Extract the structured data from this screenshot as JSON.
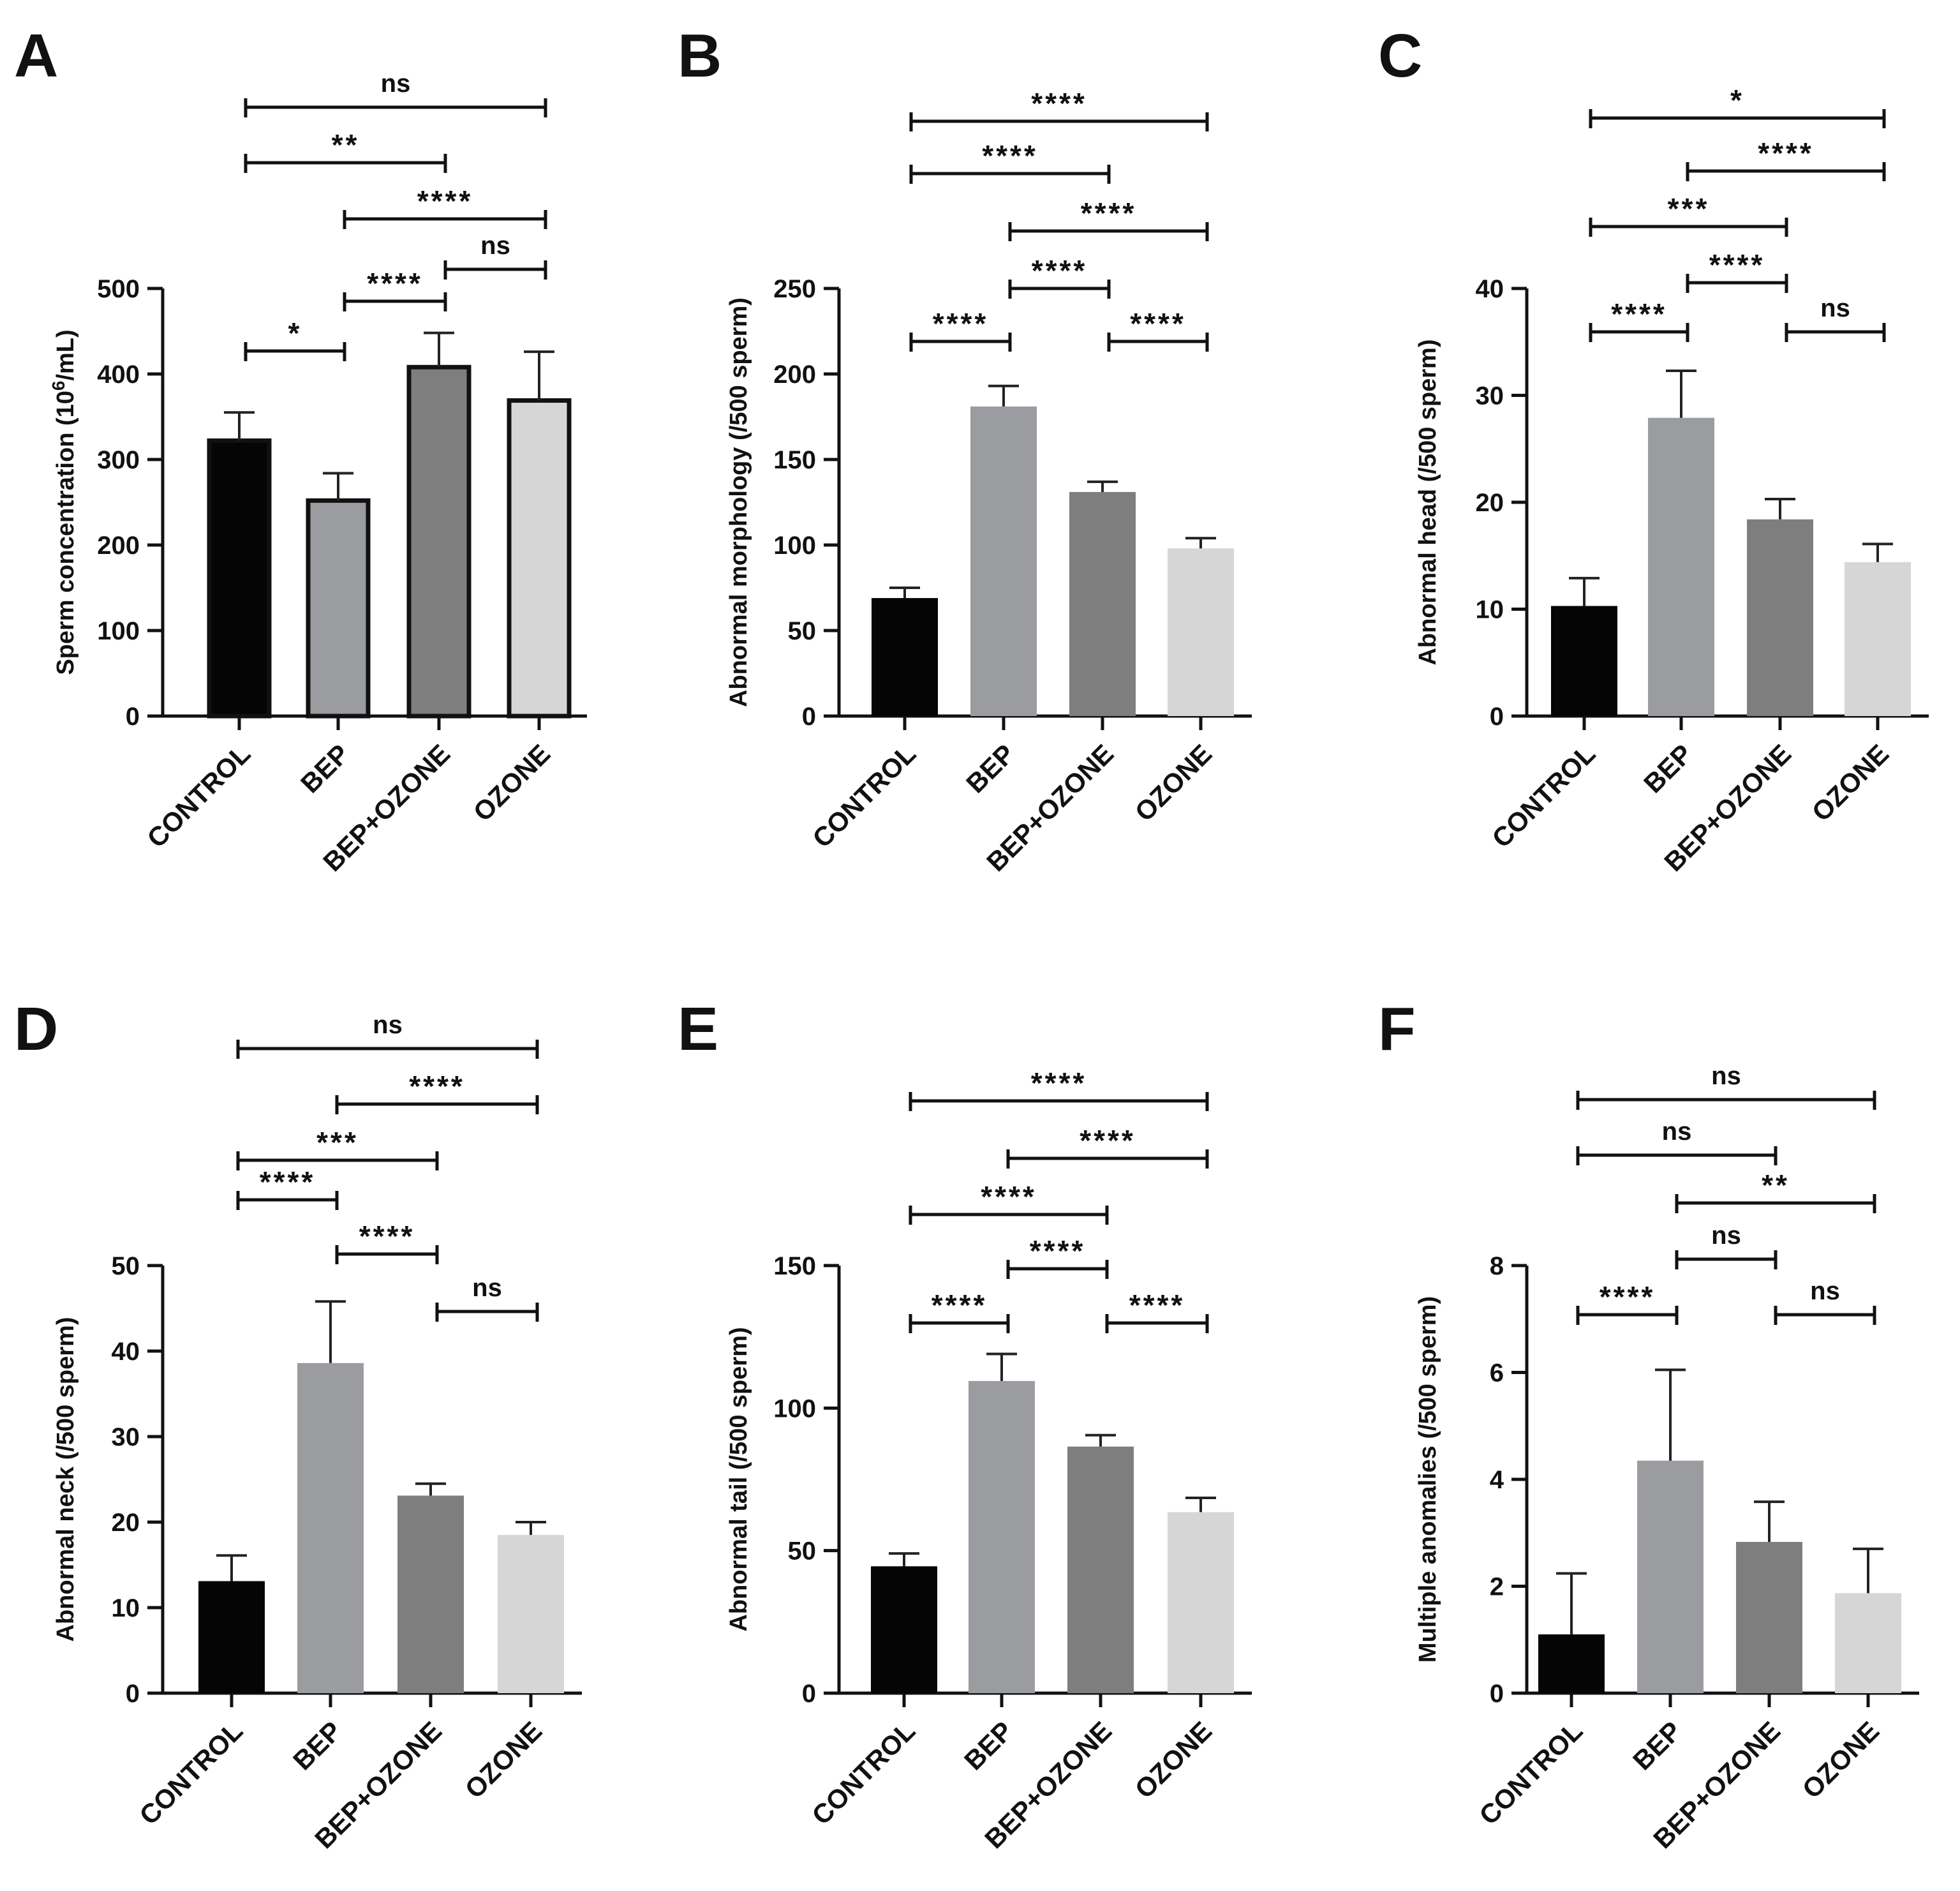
{
  "figure": {
    "categories": [
      "CONTROL",
      "BEP",
      "BEP+OZONE",
      "OZONE"
    ],
    "bar_colors": [
      "#050505",
      "#9b9ca0",
      "#7e7e7f",
      "#d6d6d6"
    ]
  },
  "chart_data": [
    {
      "panel": "A",
      "type": "bar",
      "title": "",
      "ylabel_main": "Sperm concentration (10",
      "ylabel_sup": "6",
      "ylabel_tail": "/mL)",
      "xlabel": "",
      "categories": [
        "CONTROL",
        "BEP",
        "BEP+OZONE",
        "OZONE"
      ],
      "values": [
        322,
        252,
        408,
        369
      ],
      "errors": [
        33,
        32,
        40,
        57
      ],
      "ylim": [
        0,
        500
      ],
      "yticks": [
        0,
        100,
        200,
        300,
        400,
        500
      ],
      "bar_outline": true,
      "comparisons": [
        {
          "from": 0,
          "to": 1,
          "label": "*"
        },
        {
          "from": 1,
          "to": 2,
          "label": "****"
        },
        {
          "from": 2,
          "to": 3,
          "label": "ns"
        },
        {
          "from": 1,
          "to": 3,
          "label": "****"
        },
        {
          "from": 0,
          "to": 2,
          "label": "**"
        },
        {
          "from": 0,
          "to": 3,
          "label": "ns"
        }
      ]
    },
    {
      "panel": "B",
      "type": "bar",
      "title": "",
      "ylabel": "Abnormal morphology (/500 sperm)",
      "xlabel": "",
      "categories": [
        "CONTROL",
        "BEP",
        "BEP+OZONE",
        "OZONE"
      ],
      "values": [
        69,
        181,
        131,
        98
      ],
      "errors": [
        6,
        12,
        6,
        6
      ],
      "ylim": [
        0,
        250
      ],
      "yticks": [
        0,
        50,
        100,
        150,
        200,
        250
      ],
      "bar_outline": false,
      "comparisons": [
        {
          "from": 0,
          "to": 1,
          "label": "****"
        },
        {
          "from": 2,
          "to": 3,
          "label": "****"
        },
        {
          "from": 1,
          "to": 2,
          "label": "****"
        },
        {
          "from": 1,
          "to": 3,
          "label": "****"
        },
        {
          "from": 0,
          "to": 2,
          "label": "****"
        },
        {
          "from": 0,
          "to": 3,
          "label": "****"
        }
      ]
    },
    {
      "panel": "C",
      "type": "bar",
      "title": "",
      "ylabel": "Abnormal head (/500 sperm)",
      "xlabel": "",
      "categories": [
        "CONTROL",
        "BEP",
        "BEP+OZONE",
        "OZONE"
      ],
      "values": [
        10.3,
        27.9,
        18.4,
        14.4
      ],
      "errors": [
        2.6,
        4.4,
        1.9,
        1.7
      ],
      "ylim": [
        0,
        40
      ],
      "yticks": [
        0,
        10,
        20,
        30,
        40
      ],
      "bar_outline": false,
      "comparisons": [
        {
          "from": 0,
          "to": 1,
          "label": "****"
        },
        {
          "from": 2,
          "to": 3,
          "label": "ns"
        },
        {
          "from": 1,
          "to": 2,
          "label": "****"
        },
        {
          "from": 0,
          "to": 2,
          "label": "***"
        },
        {
          "from": 1,
          "to": 3,
          "label": "****"
        },
        {
          "from": 0,
          "to": 3,
          "label": "*"
        }
      ]
    },
    {
      "panel": "D",
      "type": "bar",
      "title": "",
      "ylabel": "Abnormal neck (/500 sperm)",
      "xlabel": "",
      "categories": [
        "CONTROL",
        "BEP",
        "BEP+OZONE",
        "OZONE"
      ],
      "values": [
        13.1,
        38.6,
        23.1,
        18.5
      ],
      "errors": [
        3.0,
        7.2,
        1.4,
        1.5
      ],
      "ylim": [
        0,
        50
      ],
      "yticks": [
        0,
        10,
        20,
        30,
        40,
        50
      ],
      "bar_outline": false,
      "comparisons": [
        {
          "from": 2,
          "to": 3,
          "label": "ns"
        },
        {
          "from": 1,
          "to": 2,
          "label": "****"
        },
        {
          "from": 0,
          "to": 1,
          "label": "****"
        },
        {
          "from": 0,
          "to": 2,
          "label": "***"
        },
        {
          "from": 1,
          "to": 3,
          "label": "****"
        },
        {
          "from": 0,
          "to": 3,
          "label": "ns"
        }
      ]
    },
    {
      "panel": "E",
      "type": "bar",
      "title": "",
      "ylabel": "Abnormal tail (/500 sperm)",
      "xlabel": "",
      "categories": [
        "CONTROL",
        "BEP",
        "BEP+OZONE",
        "OZONE"
      ],
      "values": [
        44.5,
        109.5,
        86.5,
        63.5
      ],
      "errors": [
        4.5,
        9.5,
        4.0,
        5.0
      ],
      "ylim": [
        0,
        150
      ],
      "yticks": [
        0,
        50,
        100,
        150
      ],
      "bar_outline": false,
      "comparisons": [
        {
          "from": 0,
          "to": 1,
          "label": "****"
        },
        {
          "from": 2,
          "to": 3,
          "label": "****"
        },
        {
          "from": 1,
          "to": 2,
          "label": "****"
        },
        {
          "from": 0,
          "to": 2,
          "label": "****"
        },
        {
          "from": 1,
          "to": 3,
          "label": "****"
        },
        {
          "from": 0,
          "to": 3,
          "label": "****"
        }
      ]
    },
    {
      "panel": "F",
      "type": "bar",
      "title": "",
      "ylabel": "Multiple anomalies (/500 sperm)",
      "xlabel": "",
      "categories": [
        "CONTROL",
        "BEP",
        "BEP+OZONE",
        "OZONE"
      ],
      "values": [
        1.1,
        4.35,
        2.83,
        1.87
      ],
      "errors": [
        1.14,
        1.7,
        0.75,
        0.83
      ],
      "ylim": [
        0,
        8
      ],
      "yticks": [
        0,
        2,
        4,
        6,
        8
      ],
      "bar_outline": false,
      "comparisons": [
        {
          "from": 0,
          "to": 1,
          "label": "****"
        },
        {
          "from": 2,
          "to": 3,
          "label": "ns"
        },
        {
          "from": 1,
          "to": 2,
          "label": "ns"
        },
        {
          "from": 1,
          "to": 3,
          "label": "**"
        },
        {
          "from": 0,
          "to": 2,
          "label": "ns"
        },
        {
          "from": 0,
          "to": 3,
          "label": "ns"
        }
      ]
    }
  ]
}
